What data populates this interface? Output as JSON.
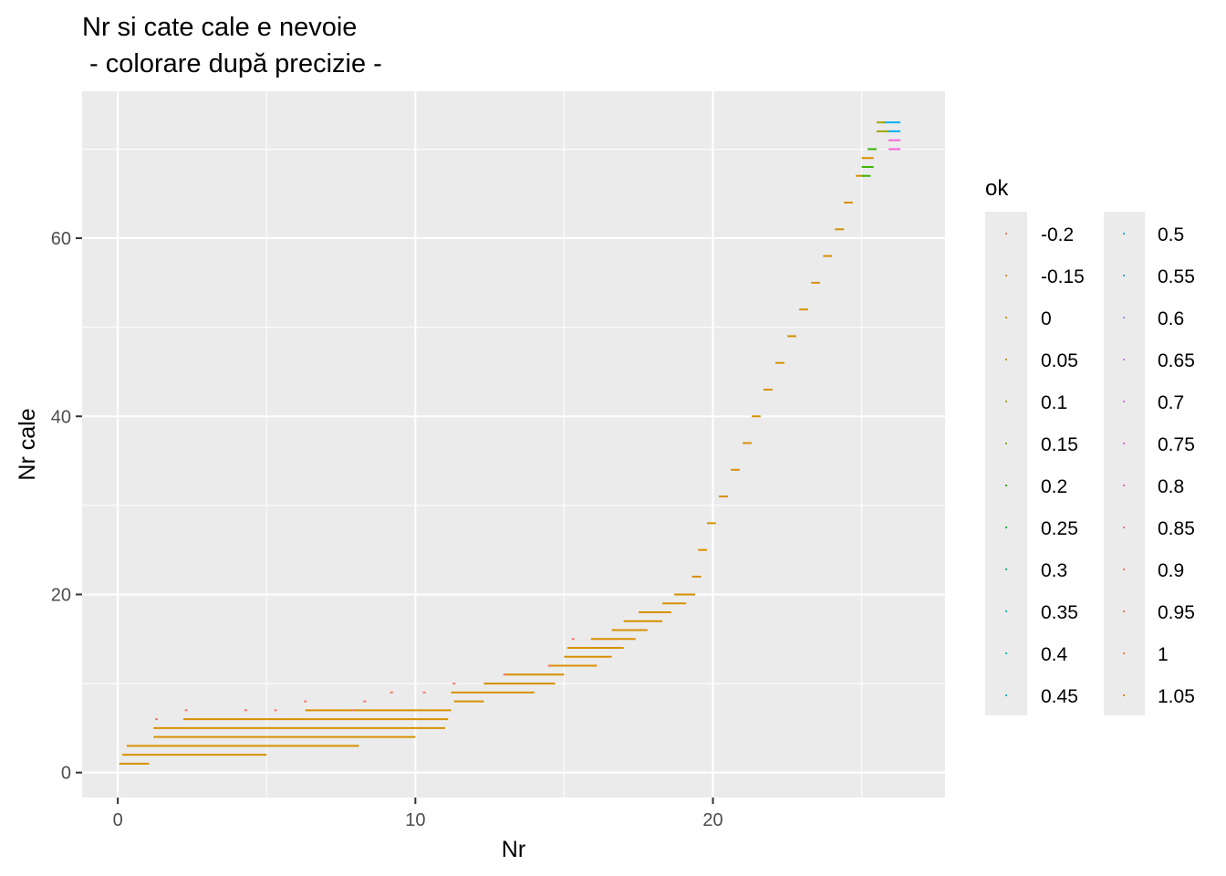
{
  "chart_data": {
    "type": "scatter",
    "title": "Nr si cate cale e nevoie",
    "subtitle": " - colorare după precizie -",
    "xlabel": "Nr",
    "ylabel": "Nr cale",
    "xlim": [
      -1.2,
      27.8
    ],
    "ylim": [
      -2.8,
      76.5
    ],
    "x_ticks": [
      0,
      10,
      20
    ],
    "y_ticks": [
      0,
      20,
      40,
      60
    ],
    "grid": true,
    "legend_placement": "right",
    "legend": {
      "title": "ok",
      "entries": [
        {
          "label": "-0.2",
          "color": "#F8766D"
        },
        {
          "label": "-0.15",
          "color": "#EA8331"
        },
        {
          "label": "0",
          "color": "#D89000"
        },
        {
          "label": "0.05",
          "color": "#C09B00"
        },
        {
          "label": "0.1",
          "color": "#A3A500"
        },
        {
          "label": "0.15",
          "color": "#7CAE00"
        },
        {
          "label": "0.2",
          "color": "#39B600"
        },
        {
          "label": "0.25",
          "color": "#00BB4E"
        },
        {
          "label": "0.3",
          "color": "#00BF7D"
        },
        {
          "label": "0.35",
          "color": "#00C1A3"
        },
        {
          "label": "0.4",
          "color": "#00BFC4"
        },
        {
          "label": "0.45",
          "color": "#00BAE0"
        },
        {
          "label": "0.5",
          "color": "#00B0F6"
        },
        {
          "label": "0.55",
          "color": "#35A2FF"
        },
        {
          "label": "0.6",
          "color": "#9590FF"
        },
        {
          "label": "0.65",
          "color": "#C77CFF"
        },
        {
          "label": "0.7",
          "color": "#E76BF3"
        },
        {
          "label": "0.75",
          "color": "#FA62DB"
        },
        {
          "label": "0.8",
          "color": "#FF62BC"
        },
        {
          "label": "0.85",
          "color": "#FF6A98"
        },
        {
          "label": "0.9",
          "color": "#F8766D"
        },
        {
          "label": "0.95",
          "color": "#F37B59"
        },
        {
          "label": "1",
          "color": "#EE8044"
        },
        {
          "label": "1.05",
          "color": "#E58700"
        }
      ]
    },
    "series": [
      {
        "name": "0",
        "color": "#D89000",
        "segments": [
          {
            "y": 1,
            "x0": 0.05,
            "x1": 1.05
          },
          {
            "y": 2,
            "x0": 0.15,
            "x1": 5.0
          },
          {
            "y": 3,
            "x0": 0.3,
            "x1": 8.1
          },
          {
            "y": 4,
            "x0": 1.2,
            "x1": 10.0
          },
          {
            "y": 5,
            "x0": 1.2,
            "x1": 11.0
          },
          {
            "y": 6,
            "x0": 2.2,
            "x1": 11.1
          },
          {
            "y": 7,
            "x0": 6.3,
            "x1": 11.2
          },
          {
            "y": 8,
            "x0": 11.3,
            "x1": 12.3
          },
          {
            "y": 9,
            "x0": 11.2,
            "x1": 14.0
          },
          {
            "y": 10,
            "x0": 12.3,
            "x1": 14.7
          },
          {
            "y": 11,
            "x0": 13.0,
            "x1": 15.0
          },
          {
            "y": 12,
            "x0": 14.5,
            "x1": 16.1
          },
          {
            "y": 13,
            "x0": 15.0,
            "x1": 16.6
          },
          {
            "y": 14,
            "x0": 15.1,
            "x1": 17.0
          },
          {
            "y": 15,
            "x0": 15.9,
            "x1": 17.4
          },
          {
            "y": 16,
            "x0": 16.6,
            "x1": 17.8
          },
          {
            "y": 17,
            "x0": 17.0,
            "x1": 18.3
          },
          {
            "y": 18,
            "x0": 17.5,
            "x1": 18.6
          },
          {
            "y": 19,
            "x0": 18.3,
            "x1": 19.1
          },
          {
            "y": 20,
            "x0": 18.7,
            "x1": 19.4
          },
          {
            "y": 22,
            "x0": 19.3,
            "x1": 19.6
          },
          {
            "y": 25,
            "x0": 19.5,
            "x1": 19.8
          },
          {
            "y": 28,
            "x0": 19.8,
            "x1": 20.1
          },
          {
            "y": 31,
            "x0": 20.2,
            "x1": 20.5
          },
          {
            "y": 34,
            "x0": 20.6,
            "x1": 20.9
          },
          {
            "y": 37,
            "x0": 21.0,
            "x1": 21.3
          },
          {
            "y": 40,
            "x0": 21.3,
            "x1": 21.6
          },
          {
            "y": 43,
            "x0": 21.7,
            "x1": 22.0
          },
          {
            "y": 46,
            "x0": 22.1,
            "x1": 22.4
          },
          {
            "y": 49,
            "x0": 22.5,
            "x1": 22.8
          },
          {
            "y": 52,
            "x0": 22.9,
            "x1": 23.2
          },
          {
            "y": 55,
            "x0": 23.3,
            "x1": 23.6
          },
          {
            "y": 58,
            "x0": 23.7,
            "x1": 24.0
          },
          {
            "y": 61,
            "x0": 24.1,
            "x1": 24.4
          },
          {
            "y": 64,
            "x0": 24.4,
            "x1": 24.7
          },
          {
            "y": 67,
            "x0": 24.8,
            "x1": 25.1
          },
          {
            "y": 69,
            "x0": 25.0,
            "x1": 25.4
          }
        ]
      },
      {
        "name": "-0.2",
        "color": "#F8766D",
        "points": [
          [
            1.3,
            6
          ],
          [
            2.3,
            7
          ],
          [
            4.3,
            7
          ],
          [
            5.3,
            7
          ],
          [
            6.3,
            8
          ],
          [
            7.9,
            7
          ],
          [
            8.3,
            8
          ],
          [
            9.2,
            9
          ],
          [
            10.3,
            9
          ],
          [
            11.3,
            10
          ],
          [
            13.0,
            11
          ],
          [
            14.5,
            12
          ],
          [
            15.3,
            15
          ]
        ]
      },
      {
        "name": "0.2",
        "color": "#39B600",
        "segments": [
          {
            "y": 67,
            "x0": 25.0,
            "x1": 25.3
          },
          {
            "y": 68,
            "x0": 25.0,
            "x1": 25.4
          },
          {
            "y": 70,
            "x0": 25.2,
            "x1": 25.5
          }
        ]
      },
      {
        "name": "0.5",
        "color": "#00B0F6",
        "segments": [
          {
            "y": 72,
            "x0": 25.8,
            "x1": 26.3
          },
          {
            "y": 73,
            "x0": 25.7,
            "x1": 26.3
          }
        ]
      },
      {
        "name": "0.75",
        "color": "#FA62DB",
        "segments": [
          {
            "y": 70,
            "x0": 25.9,
            "x1": 26.3
          },
          {
            "y": 71,
            "x0": 25.9,
            "x1": 26.3
          }
        ]
      },
      {
        "name": "0.1",
        "color": "#A3A500",
        "segments": [
          {
            "y": 72,
            "x0": 25.5,
            "x1": 25.9
          },
          {
            "y": 73,
            "x0": 25.5,
            "x1": 25.8
          }
        ]
      }
    ]
  }
}
